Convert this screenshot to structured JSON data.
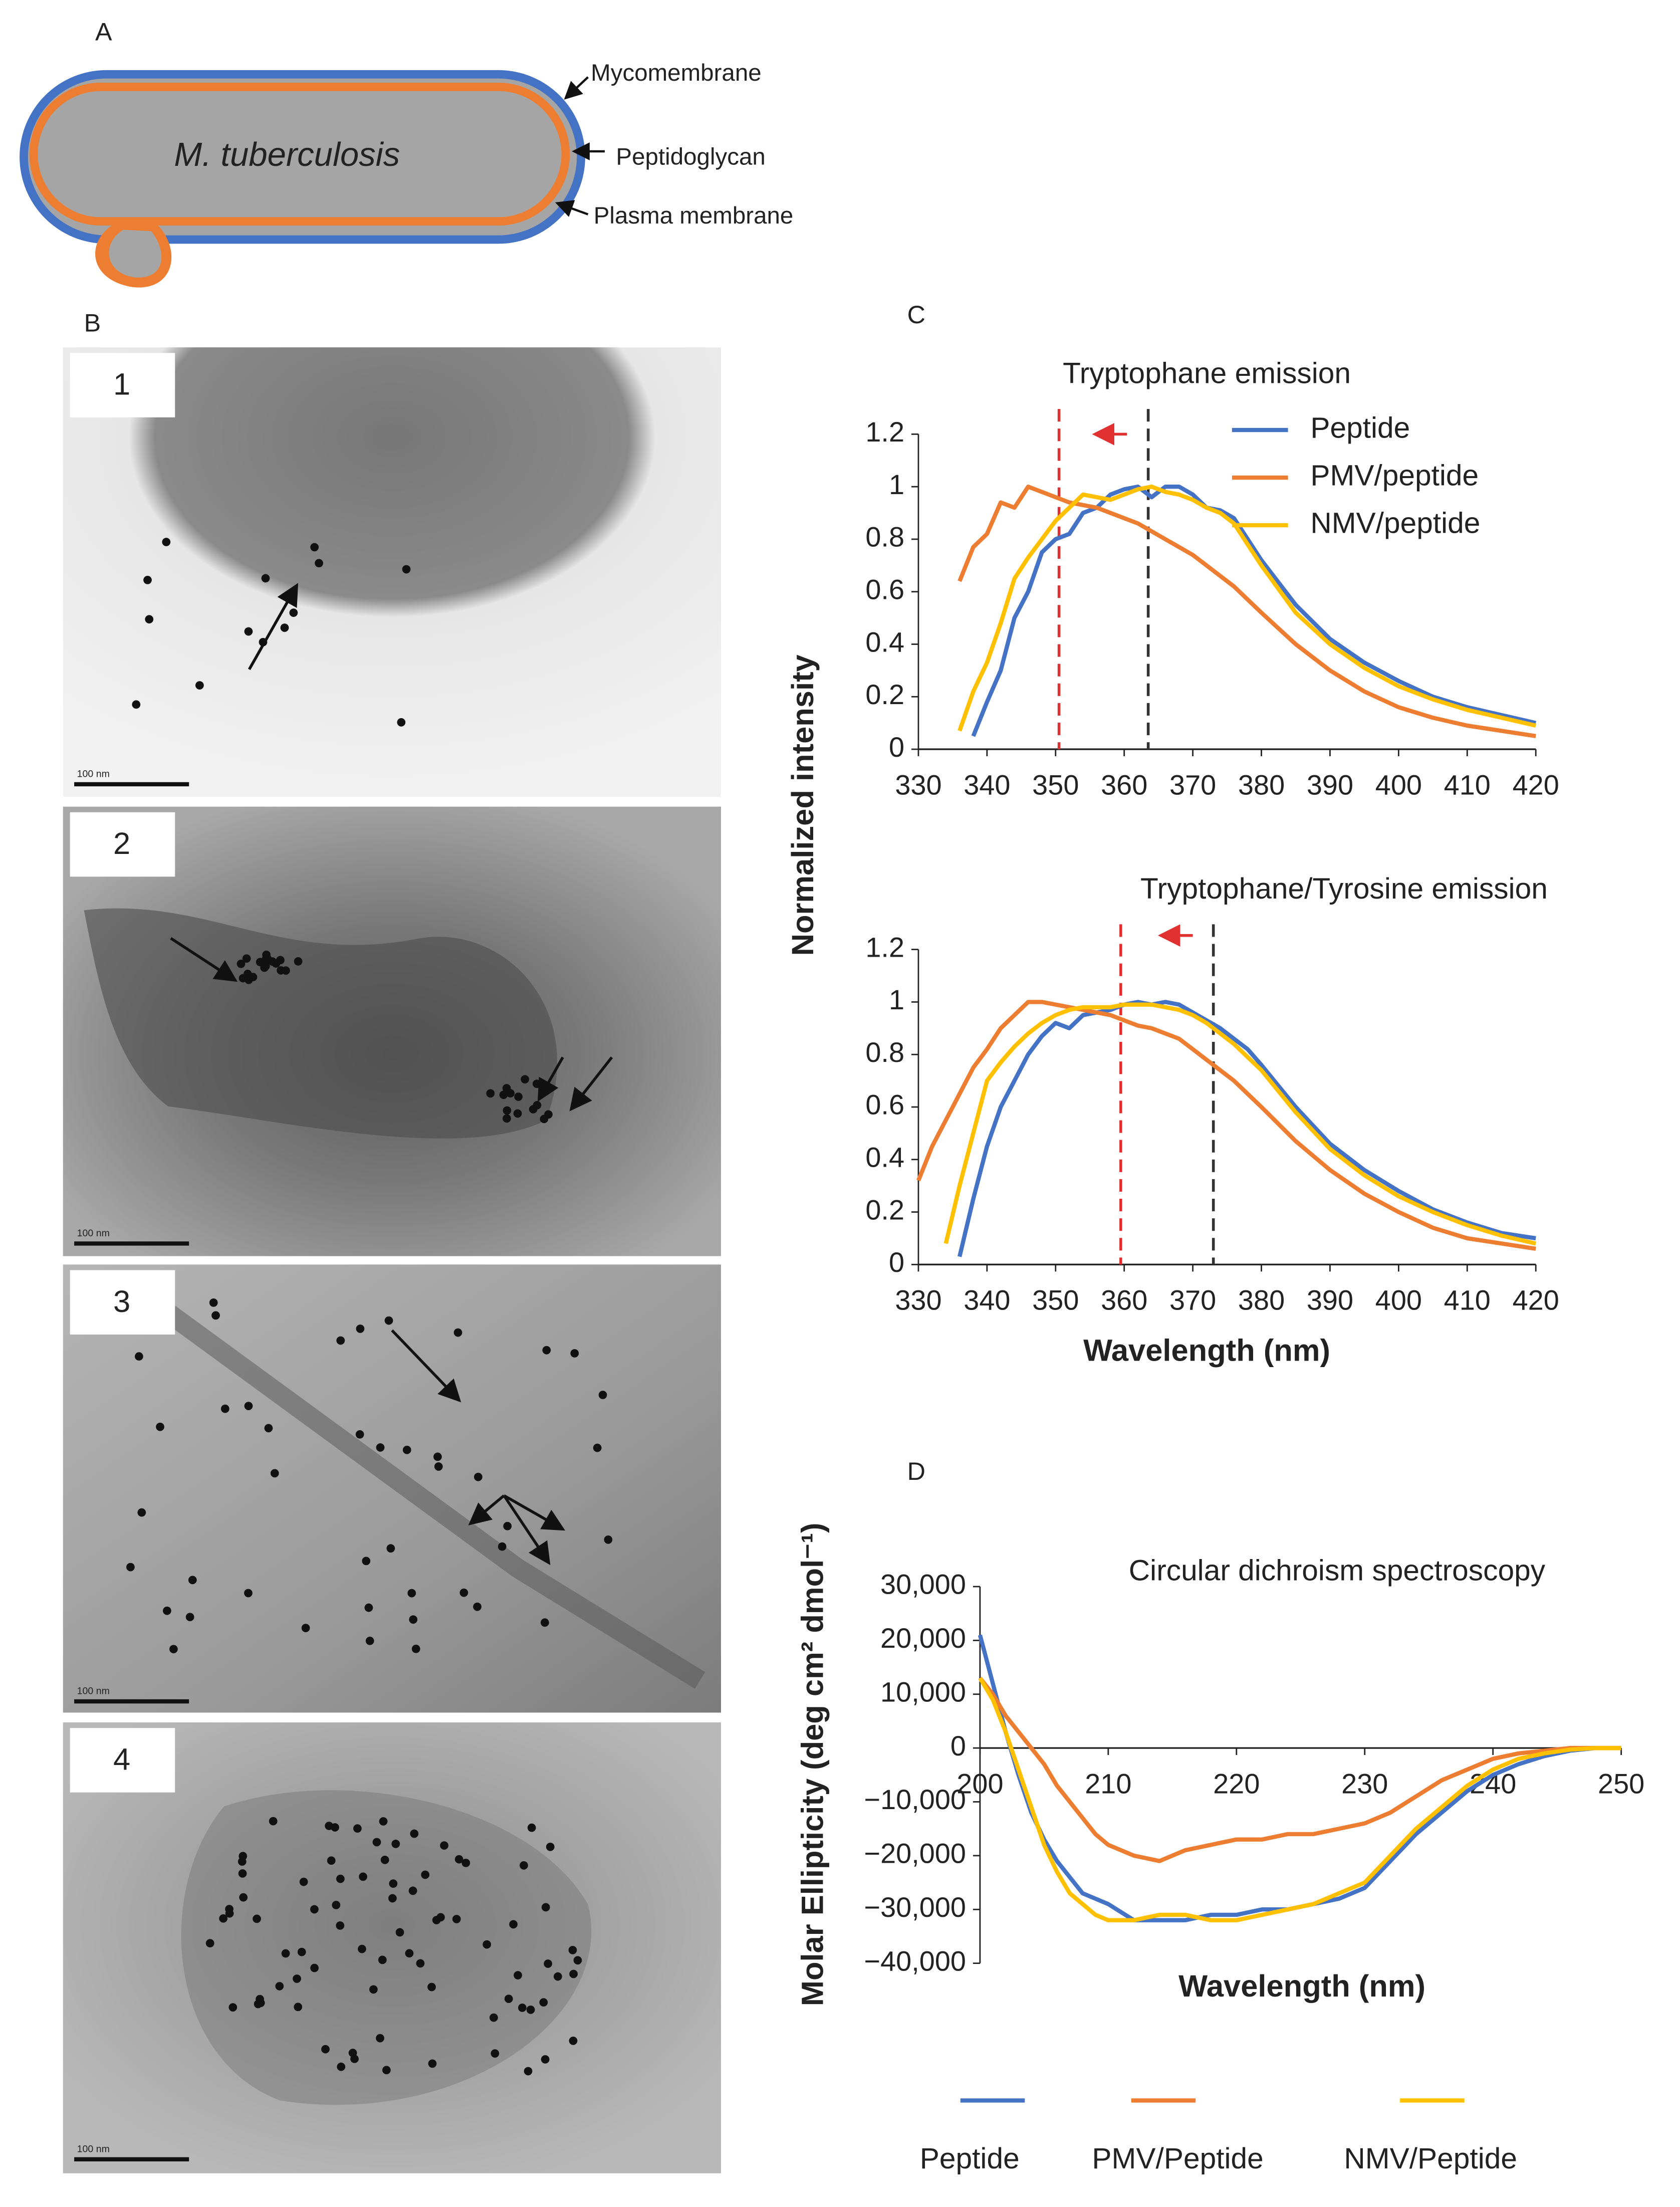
{
  "panel_labels": [
    "A",
    "B",
    "C",
    "D"
  ],
  "diagram": {
    "organism": "M. tuberculosis",
    "layers": [
      "Mycomembrane",
      "Peptidoglycan",
      "Plasma membrane"
    ]
  },
  "micrographs": [
    {
      "label": "1",
      "scale_bar": "100 nm"
    },
    {
      "label": "2",
      "scale_bar": "100 nm"
    },
    {
      "label": "3",
      "scale_bar": "100 nm"
    },
    {
      "label": "4",
      "scale_bar": "100 nm"
    }
  ],
  "chart_data": [
    {
      "type": "line",
      "title": "Tryptophane emission",
      "ylabel": "Normalized intensity",
      "x": [
        336,
        338,
        340,
        342,
        344,
        346,
        348,
        350,
        352,
        354,
        356,
        358,
        360,
        362,
        364,
        366,
        368,
        370,
        372,
        374,
        376,
        378,
        380,
        385,
        390,
        395,
        400,
        405,
        410,
        415,
        420
      ],
      "series": [
        {
          "name": "Peptide",
          "color": "#4472c4",
          "values": [
            null,
            0.05,
            0.18,
            0.3,
            0.5,
            0.6,
            0.75,
            0.8,
            0.82,
            0.9,
            0.92,
            0.97,
            0.99,
            1.0,
            0.96,
            1.0,
            1.0,
            0.97,
            0.92,
            0.91,
            0.88,
            0.8,
            0.72,
            0.55,
            0.42,
            0.33,
            0.26,
            0.2,
            0.16,
            0.13,
            0.1
          ]
        },
        {
          "name": "PMV/peptide",
          "color": "#ed7d31",
          "values": [
            0.64,
            0.77,
            0.82,
            0.94,
            0.92,
            1.0,
            0.98,
            0.96,
            0.94,
            0.93,
            0.92,
            0.9,
            0.88,
            0.86,
            0.83,
            0.8,
            0.77,
            0.74,
            0.7,
            0.66,
            0.62,
            0.57,
            0.52,
            0.4,
            0.3,
            0.22,
            0.16,
            0.12,
            0.09,
            0.07,
            0.05
          ]
        },
        {
          "name": "NMV/peptide",
          "color": "#ffc000",
          "values": [
            0.07,
            0.22,
            0.33,
            0.48,
            0.65,
            0.73,
            0.8,
            0.87,
            0.92,
            0.97,
            0.96,
            0.95,
            0.97,
            0.99,
            1.0,
            0.98,
            0.97,
            0.95,
            0.92,
            0.9,
            0.86,
            0.78,
            0.7,
            0.52,
            0.4,
            0.31,
            0.24,
            0.19,
            0.15,
            0.12,
            0.09
          ]
        }
      ],
      "vlines": [
        {
          "x": 350.5,
          "color": "#e03030"
        },
        {
          "x": 363.5,
          "color": "#333333"
        }
      ],
      "xlim": [
        330,
        420
      ],
      "xticks": [
        330,
        340,
        350,
        360,
        370,
        380,
        390,
        400,
        410,
        420
      ],
      "ylim": [
        0,
        1.2
      ],
      "yticks": [
        0,
        0.2,
        0.4,
        0.6,
        0.8,
        1,
        1.2
      ],
      "legend": "upper right"
    },
    {
      "type": "line",
      "title": "Tryptophane/Tyrosine emission",
      "xlabel": "Wavelength (nm)",
      "x": [
        330,
        332,
        334,
        336,
        338,
        340,
        342,
        344,
        346,
        348,
        350,
        352,
        354,
        356,
        358,
        360,
        362,
        364,
        366,
        368,
        370,
        372,
        374,
        376,
        378,
        380,
        385,
        390,
        395,
        400,
        405,
        410,
        415,
        420
      ],
      "series": [
        {
          "color": "#4472c4",
          "values": [
            null,
            null,
            null,
            0.03,
            0.25,
            0.45,
            0.6,
            0.7,
            0.8,
            0.87,
            0.92,
            0.9,
            0.95,
            0.96,
            0.97,
            0.99,
            1.0,
            0.99,
            1.0,
            0.99,
            0.96,
            0.93,
            0.9,
            0.86,
            0.82,
            0.76,
            0.6,
            0.46,
            0.36,
            0.28,
            0.21,
            0.16,
            0.12,
            0.1
          ]
        },
        {
          "color": "#ed7d31",
          "values": [
            0.32,
            0.45,
            0.55,
            0.65,
            0.75,
            0.82,
            0.9,
            0.95,
            1.0,
            1.0,
            0.99,
            0.98,
            0.97,
            0.96,
            0.95,
            0.93,
            0.91,
            0.9,
            0.88,
            0.86,
            0.82,
            0.78,
            0.74,
            0.7,
            0.65,
            0.6,
            0.47,
            0.36,
            0.27,
            0.2,
            0.14,
            0.1,
            0.08,
            0.06
          ]
        },
        {
          "color": "#ffc000",
          "values": [
            null,
            null,
            0.08,
            0.3,
            0.5,
            0.7,
            0.77,
            0.83,
            0.88,
            0.92,
            0.95,
            0.97,
            0.98,
            0.98,
            0.98,
            0.99,
            0.99,
            0.99,
            0.98,
            0.97,
            0.95,
            0.92,
            0.88,
            0.84,
            0.79,
            0.74,
            0.58,
            0.44,
            0.34,
            0.26,
            0.2,
            0.15,
            0.11,
            0.08
          ]
        }
      ],
      "vlines": [
        {
          "x": 359.5,
          "color": "#e03030"
        },
        {
          "x": 373,
          "color": "#333333"
        }
      ],
      "xlim": [
        330,
        420
      ],
      "xticks": [
        330,
        340,
        350,
        360,
        370,
        380,
        390,
        400,
        410,
        420
      ],
      "ylim": [
        0,
        1.2
      ],
      "yticks": [
        0,
        0.2,
        0.4,
        0.6,
        0.8,
        1,
        1.2
      ]
    },
    {
      "type": "line",
      "title": "Circular dichroism spectroscopy",
      "xlabel": "Wavelength (nm)",
      "ylabel": "Molar Ellipticity (deg cm² dmol⁻¹)",
      "x": [
        200,
        201,
        202,
        203,
        204,
        205,
        206,
        207,
        208,
        209,
        210,
        212,
        214,
        216,
        218,
        220,
        222,
        224,
        226,
        228,
        230,
        232,
        234,
        236,
        238,
        240,
        242,
        244,
        246,
        248,
        250
      ],
      "series": [
        {
          "name": "Peptide",
          "color": "#4472c4",
          "values": [
            21000,
            12000,
            3000,
            -5000,
            -12000,
            -17000,
            -21000,
            -24000,
            -27000,
            -28000,
            -29000,
            -32000,
            -32000,
            -32000,
            -31000,
            -31000,
            -30000,
            -30000,
            -29000,
            -28000,
            -26000,
            -21000,
            -16000,
            -12000,
            -8000,
            -5000,
            -3000,
            -1500,
            -500,
            0,
            0
          ]
        },
        {
          "name": "PMV/Peptide",
          "color": "#ed7d31",
          "values": [
            13000,
            10000,
            6000,
            3000,
            0,
            -3000,
            -7000,
            -10000,
            -13000,
            -16000,
            -18000,
            -20000,
            -21000,
            -19000,
            -18000,
            -17000,
            -17000,
            -16000,
            -16000,
            -15000,
            -14000,
            -12000,
            -9000,
            -6000,
            -4000,
            -2000,
            -1000,
            -500,
            0,
            0,
            0
          ]
        },
        {
          "name": "NMV/Peptide",
          "color": "#ffc000",
          "values": [
            13000,
            9000,
            3000,
            -4000,
            -11000,
            -18000,
            -23000,
            -27000,
            -29000,
            -31000,
            -32000,
            -32000,
            -31000,
            -31000,
            -32000,
            -32000,
            -31000,
            -30000,
            -29000,
            -27000,
            -25000,
            -20000,
            -15000,
            -11000,
            -7000,
            -4000,
            -2000,
            -1000,
            -300,
            0,
            0
          ]
        }
      ],
      "xlim": [
        200,
        250
      ],
      "xticks": [
        200,
        210,
        220,
        230,
        240,
        250
      ],
      "ylim": [
        -40000,
        30000
      ],
      "yticks": [
        {
          "value": 30000,
          "label": "30,000"
        },
        {
          "value": 20000,
          "label": "20,000"
        },
        {
          "value": 10000,
          "label": "10,000"
        },
        0,
        {
          "value": -10000,
          "label": "−10,000"
        },
        {
          "value": -20000,
          "label": "−20,000"
        },
        {
          "value": -30000,
          "label": "−30,000"
        },
        {
          "value": -40000,
          "label": "−40,000"
        }
      ],
      "legend": "bottom"
    }
  ]
}
